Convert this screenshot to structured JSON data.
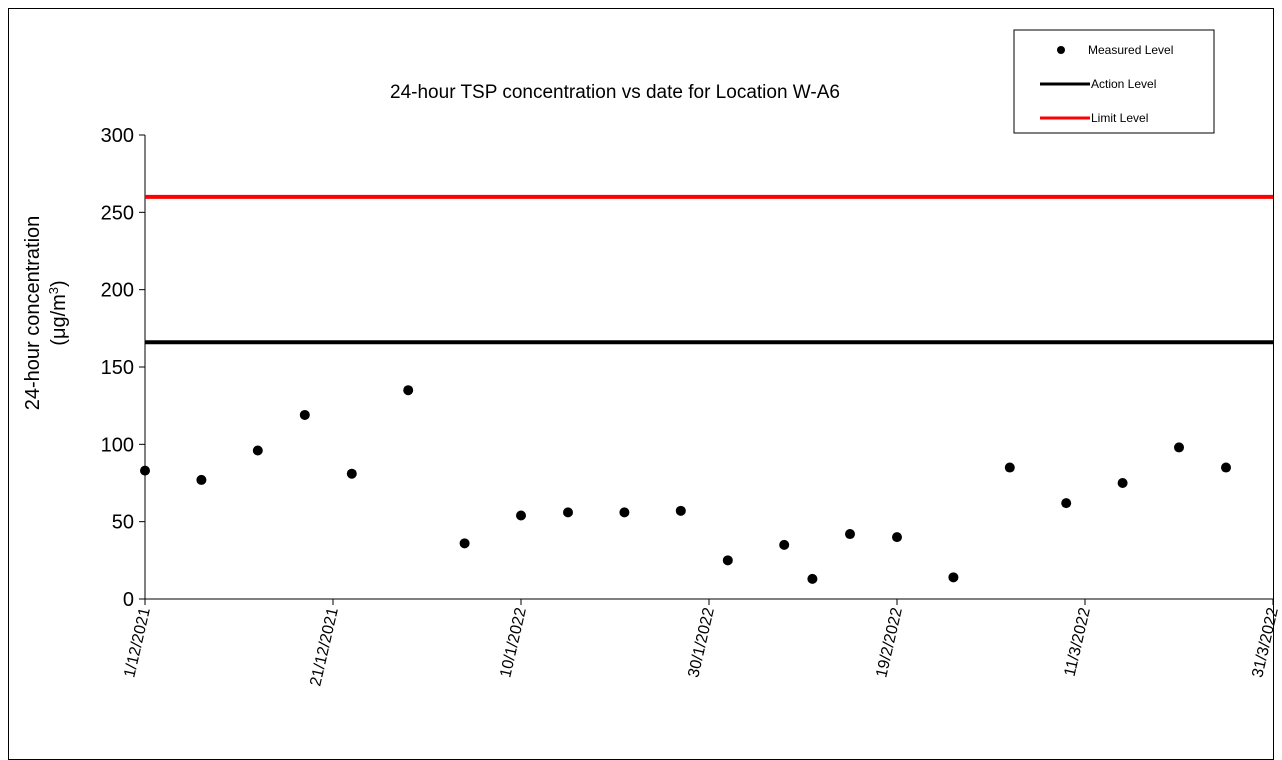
{
  "chart_data": {
    "type": "scatter",
    "title": "24-hour TSP concentration vs date for Location W-A6",
    "xlabel": "",
    "ylabel_line1": "24-hour concentration",
    "ylabel_line2_prefix": "(μg/m",
    "ylabel_line2_sup": "3",
    "ylabel_line2_suffix": ")",
    "ylim": [
      0,
      300
    ],
    "yticks": [
      0,
      50,
      100,
      150,
      200,
      250,
      300
    ],
    "xlim": [
      "2021-12-01",
      "2022-03-31"
    ],
    "xticks": [
      {
        "date": "2021-12-01",
        "label": "1/12/2021"
      },
      {
        "date": "2021-12-21",
        "label": "21/12/2021"
      },
      {
        "date": "2022-01-10",
        "label": "10/1/2022"
      },
      {
        "date": "2022-01-30",
        "label": "30/1/2022"
      },
      {
        "date": "2022-02-19",
        "label": "19/2/2022"
      },
      {
        "date": "2022-03-11",
        "label": "11/3/2022"
      },
      {
        "date": "2022-03-31",
        "label": "31/3/2022"
      }
    ],
    "grid": false,
    "legend_position": "top-right",
    "series": [
      {
        "name": "Measured Level",
        "kind": "points",
        "color": "#000000",
        "points": [
          {
            "x": "2021-12-01",
            "y": 83
          },
          {
            "x": "2021-12-07",
            "y": 77
          },
          {
            "x": "2021-12-13",
            "y": 96
          },
          {
            "x": "2021-12-18",
            "y": 119
          },
          {
            "x": "2021-12-23",
            "y": 81
          },
          {
            "x": "2021-12-29",
            "y": 135
          },
          {
            "x": "2022-01-04",
            "y": 36
          },
          {
            "x": "2022-01-10",
            "y": 54
          },
          {
            "x": "2022-01-15",
            "y": 56
          },
          {
            "x": "2022-01-21",
            "y": 56
          },
          {
            "x": "2022-01-27",
            "y": 57
          },
          {
            "x": "2022-02-01",
            "y": 25
          },
          {
            "x": "2022-02-07",
            "y": 35
          },
          {
            "x": "2022-02-10",
            "y": 13
          },
          {
            "x": "2022-02-14",
            "y": 42
          },
          {
            "x": "2022-02-19",
            "y": 40
          },
          {
            "x": "2022-02-25",
            "y": 14
          },
          {
            "x": "2022-03-03",
            "y": 85
          },
          {
            "x": "2022-03-09",
            "y": 62
          },
          {
            "x": "2022-03-15",
            "y": 75
          },
          {
            "x": "2022-03-21",
            "y": 98
          },
          {
            "x": "2022-03-26",
            "y": 85
          }
        ]
      },
      {
        "name": "Action Level",
        "kind": "hline",
        "color": "#000000",
        "y": 166
      },
      {
        "name": "Limit Level",
        "kind": "hline",
        "color": "#ff0000",
        "y": 260
      }
    ]
  }
}
